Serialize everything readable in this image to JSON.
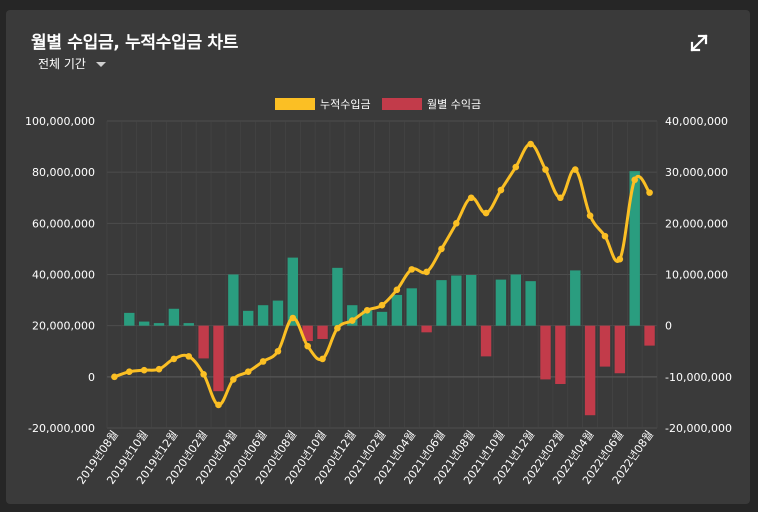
{
  "header": {
    "title": "월별 수입금, 누적수입금 차트",
    "period_label": "전체 기간",
    "icons": {
      "expand": "expand-icon",
      "dropdown": "caret-down-icon"
    }
  },
  "chart_data": {
    "type": "bar+line",
    "legend": [
      {
        "name": "누적수입금",
        "color": "#fbbf24"
      },
      {
        "name": "월별 수익금",
        "color": "#c23b4a"
      }
    ],
    "colors": {
      "positive_bar": "#2a9d7f",
      "negative_bar": "#c23b4a",
      "line": "#fbbf24"
    },
    "x": [
      "2019년08월",
      "2019년09월",
      "2019년10월",
      "2019년11월",
      "2019년12월",
      "2020년01월",
      "2020년02월",
      "2020년03월",
      "2020년04월",
      "2020년05월",
      "2020년06월",
      "2020년07월",
      "2020년08월",
      "2020년09월",
      "2020년10월",
      "2020년11월",
      "2020년12월",
      "2021년01월",
      "2021년02월",
      "2021년03월",
      "2021년04월",
      "2021년05월",
      "2021년06월",
      "2021년07월",
      "2021년08월",
      "2021년09월",
      "2021년10월",
      "2021년11월",
      "2021년12월",
      "2022년01월",
      "2022년02월",
      "2022년03월",
      "2022년04월",
      "2022년05월",
      "2022년06월",
      "2022년07월",
      "2022년08월"
    ],
    "x_tick_labels": [
      "2019년08월",
      "2019년10월",
      "2019년12월",
      "2020년02월",
      "2020년04월",
      "2020년06월",
      "2020년08월",
      "2020년10월",
      "2020년12월",
      "2021년02월",
      "2021년04월",
      "2021년06월",
      "2021년08월",
      "2021년10월",
      "2021년12월",
      "2022년02월",
      "2022년04월",
      "2022년06월",
      "2022년08월"
    ],
    "series": [
      {
        "name": "누적수입금",
        "type": "line",
        "axis": "left",
        "values": [
          0,
          2000000,
          2600000,
          3000000,
          7000000,
          8000000,
          1000000,
          -11000000,
          -1000000,
          2000000,
          6000000,
          10000000,
          23000000,
          12000000,
          7000000,
          19000000,
          22000000,
          26000000,
          28000000,
          34000000,
          42000000,
          41000000,
          50000000,
          60000000,
          70000000,
          64000000,
          73000000,
          82000000,
          91000000,
          81000000,
          70000000,
          81000000,
          63000000,
          55000000,
          46000000,
          77000000,
          72000000
        ]
      },
      {
        "name": "월별 수익금",
        "type": "bar",
        "axis": "right",
        "values": [
          0,
          2500000,
          800000,
          500000,
          3300000,
          500000,
          -6400000,
          -12800000,
          10000000,
          2900000,
          4000000,
          4900000,
          13300000,
          -3000000,
          -2600000,
          11300000,
          4000000,
          3000000,
          2700000,
          6000000,
          7300000,
          -1300000,
          8900000,
          9800000,
          9900000,
          -6000000,
          9000000,
          10000000,
          8700000,
          -10500000,
          -11400000,
          10800000,
          -17500000,
          -8000000,
          -9300000,
          30200000,
          -3900000
        ]
      }
    ],
    "y_left": {
      "range": [
        -20000000,
        100000000
      ],
      "ticks": [
        -20000000,
        0,
        20000000,
        40000000,
        60000000,
        80000000,
        100000000
      ],
      "tick_labels": [
        "-20,000,000",
        "0",
        "20,000,000",
        "40,000,000",
        "60,000,000",
        "80,000,000",
        "100,000,000"
      ]
    },
    "y_right": {
      "range": [
        -20000000,
        40000000
      ],
      "ticks": [
        -20000000,
        -10000000,
        0,
        10000000,
        20000000,
        30000000,
        40000000
      ],
      "tick_labels": [
        "-20,000,000",
        "-10,000,000",
        "0",
        "10,000,000",
        "20,000,000",
        "30,000,000",
        "40,000,000"
      ]
    },
    "grid": true,
    "legend_position": "top-center"
  }
}
